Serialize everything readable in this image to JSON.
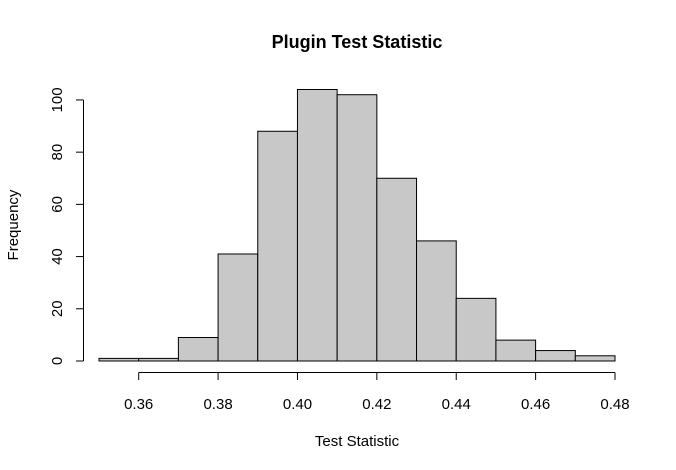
{
  "chart_data": {
    "type": "bar",
    "subtype": "histogram",
    "title": "Plugin Test Statistic",
    "xlabel": "Test Statistic",
    "ylabel": "Frequency",
    "bin_edges": [
      0.35,
      0.36,
      0.37,
      0.38,
      0.39,
      0.4,
      0.41,
      0.42,
      0.43,
      0.44,
      0.45,
      0.46,
      0.47,
      0.48
    ],
    "values": [
      1,
      1,
      9,
      41,
      88,
      104,
      102,
      70,
      46,
      24,
      8,
      4,
      2
    ],
    "xlim": [
      0.35,
      0.48
    ],
    "ylim": [
      0,
      104
    ],
    "x_ticks": [
      "0.36",
      "0.38",
      "0.40",
      "0.42",
      "0.44",
      "0.46",
      "0.48"
    ],
    "y_ticks": [
      "0",
      "20",
      "40",
      "60",
      "80",
      "100"
    ],
    "bar_color": "#c8c8c8",
    "grid": false,
    "legend": "none"
  }
}
